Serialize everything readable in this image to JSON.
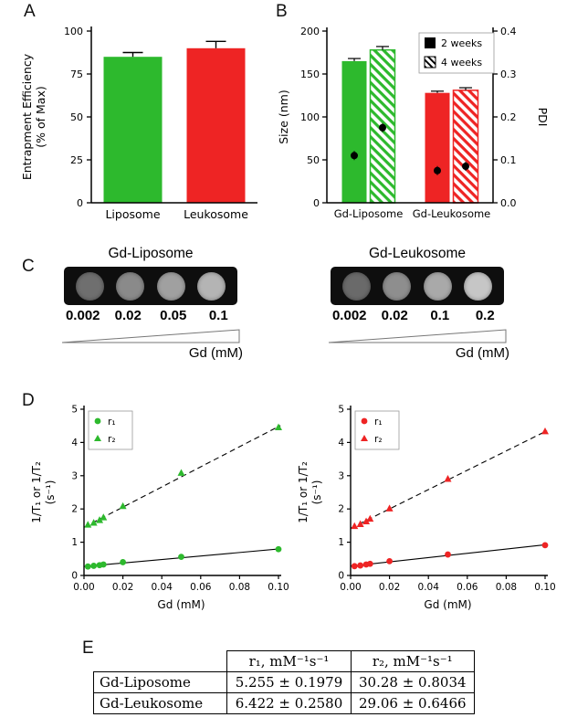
{
  "panels": {
    "a": {
      "letter": "A"
    },
    "b": {
      "letter": "B"
    },
    "c": {
      "letter": "C",
      "gd_label": "Gd (mM)",
      "liposome": {
        "title": "Gd-Liposome",
        "labels": [
          "0.002",
          "0.02",
          "0.05",
          "0.1"
        ],
        "well_grays": [
          "#6f6f6f",
          "#8a8a8a",
          "#a0a0a0",
          "#b4b4b4"
        ]
      },
      "leukosome": {
        "title": "Gd-Leukosome",
        "labels": [
          "0.002",
          "0.02",
          "0.1",
          "0.2"
        ],
        "well_grays": [
          "#6a6a6a",
          "#8e8e8e",
          "#a9a9a9",
          "#c6c6c6"
        ]
      }
    },
    "d": {
      "letter": "D"
    },
    "e": {
      "letter": "E",
      "table": {
        "headers": [
          "",
          "r₁, mM⁻¹s⁻¹",
          "r₂, mM⁻¹s⁻¹"
        ],
        "rows": [
          [
            "Gd-Liposome",
            "5.255 ± 0.1979",
            "30.28 ± 0.8034"
          ],
          [
            "Gd-Leukosome",
            "6.422 ± 0.2580",
            "29.06 ± 0.6466"
          ]
        ]
      }
    }
  },
  "chart_data": [
    {
      "id": "entrapment_efficiency",
      "panel": "A",
      "type": "bar",
      "categories": [
        "Liposome",
        "Leukosome"
      ],
      "values": [
        85,
        90
      ],
      "errors": [
        2.5,
        4
      ],
      "bar_colors": [
        "#2db92d",
        "#ee2424"
      ],
      "ylabel_lines": [
        "Entrapment Efficiency",
        "(% of Max)"
      ],
      "ylim": [
        0,
        100
      ],
      "yticks": [
        0,
        25,
        50,
        75,
        100
      ]
    },
    {
      "id": "size_and_pdi",
      "panel": "B",
      "type": "bar",
      "categories": [
        "Gd-Liposome",
        "Gd-Leukosome"
      ],
      "category_colors": [
        "#2db92d",
        "#ee2424"
      ],
      "series": [
        {
          "name": "2 weeks",
          "style": "solid",
          "values": [
            165,
            128
          ],
          "errors": [
            3,
            2
          ]
        },
        {
          "name": "4 weeks",
          "style": "hatched",
          "values": [
            178,
            131
          ],
          "errors": [
            4,
            3
          ]
        }
      ],
      "pdi_series": [
        {
          "name": "2 weeks",
          "values": [
            0.11,
            0.075
          ]
        },
        {
          "name": "4 weeks",
          "values": [
            0.175,
            0.085
          ]
        }
      ],
      "ylabel": "Size (nm)",
      "ylim": [
        0,
        200
      ],
      "yticks": [
        0,
        50,
        100,
        150,
        200
      ],
      "ylabel_right": "PDI",
      "ylim_right": [
        0,
        0.4
      ],
      "yticks_right": [
        "0.0",
        "0.1",
        "0.2",
        "0.3",
        "0.4"
      ],
      "legend": [
        "2 weeks",
        "4 weeks"
      ],
      "legend_position": "top-right"
    },
    {
      "id": "relaxivity_gd_liposome",
      "panel": "D",
      "type": "scatter",
      "color": "#2db92d",
      "series": [
        {
          "name": "r₁",
          "marker": "circle",
          "line": "solid",
          "x": [
            0.002,
            0.005,
            0.008,
            0.01,
            0.02,
            0.05,
            0.1
          ],
          "y": [
            0.27,
            0.29,
            0.31,
            0.33,
            0.4,
            0.56,
            0.79
          ],
          "fit": {
            "slope": 5.255,
            "intercept": 0.27
          }
        },
        {
          "name": "r₂",
          "marker": "triangle",
          "line": "dashed",
          "x": [
            0.002,
            0.005,
            0.008,
            0.01,
            0.02,
            0.05,
            0.1
          ],
          "y": [
            1.52,
            1.58,
            1.66,
            1.74,
            2.08,
            3.08,
            4.45
          ],
          "fit": {
            "slope": 30.28,
            "intercept": 1.45
          }
        }
      ],
      "xlabel": "Gd (mM)",
      "ylabel_lines": [
        "1/T₁ or 1/T₂",
        "(s⁻¹)"
      ],
      "xlim": [
        0,
        0.1
      ],
      "ylim": [
        0,
        5
      ],
      "xticks": [
        "0.00",
        "0.02",
        "0.04",
        "0.06",
        "0.08",
        "0.10"
      ],
      "yticks": [
        0,
        1,
        2,
        3,
        4,
        5
      ]
    },
    {
      "id": "relaxivity_gd_leukosome",
      "panel": "D",
      "type": "scatter",
      "color": "#ee2424",
      "series": [
        {
          "name": "r₁",
          "marker": "circle",
          "line": "solid",
          "x": [
            0.002,
            0.005,
            0.008,
            0.01,
            0.02,
            0.05,
            0.1
          ],
          "y": [
            0.28,
            0.3,
            0.33,
            0.35,
            0.43,
            0.63,
            0.91
          ],
          "fit": {
            "slope": 6.422,
            "intercept": 0.28
          }
        },
        {
          "name": "r₂",
          "marker": "triangle",
          "line": "dashed",
          "x": [
            0.002,
            0.005,
            0.008,
            0.01,
            0.02,
            0.05,
            0.1
          ],
          "y": [
            1.48,
            1.54,
            1.62,
            1.7,
            2.01,
            2.9,
            4.33
          ],
          "fit": {
            "slope": 29.06,
            "intercept": 1.42
          }
        }
      ],
      "xlabel": "Gd (mM)",
      "ylabel_lines": [
        "1/T₁ or 1/T₂",
        "(s⁻¹)"
      ],
      "xlim": [
        0,
        0.1
      ],
      "ylim": [
        0,
        5
      ],
      "xticks": [
        "0.00",
        "0.02",
        "0.04",
        "0.06",
        "0.08",
        "0.10"
      ],
      "yticks": [
        0,
        1,
        2,
        3,
        4,
        5
      ]
    }
  ]
}
